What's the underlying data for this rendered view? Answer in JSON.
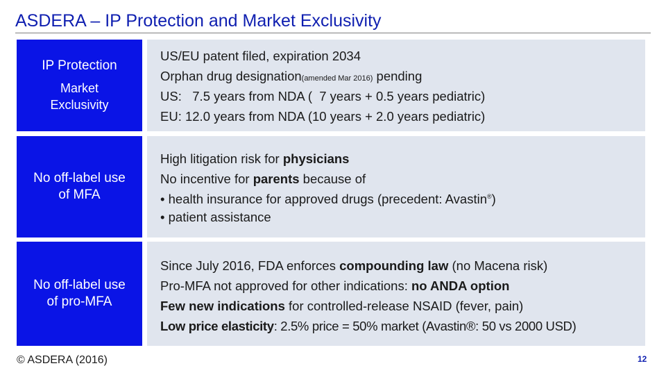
{
  "title": "ASDERA – IP Protection and Market Exclusivity",
  "rows": [
    {
      "labels": [
        "IP Protection",
        "Market Exclusivity"
      ],
      "lines": {
        "l1": "US/EU patent filed, expiration 2034",
        "l2a": "Orphan drug designation",
        "l2b": "(amended Mar 2016)",
        "l2c": " pending",
        "l3": "US:   7.5 years from NDA (  7 years + 0.5 years pediatric)",
        "l4": "EU: 12.0 years from NDA (10 years + 2.0 years pediatric)"
      }
    },
    {
      "labels": [
        "No off-label use",
        "of MFA"
      ],
      "lines": {
        "l1a": "High litigation risk for ",
        "l1b": "physicians",
        "l2a": "No incentive for ",
        "l2b": "parents",
        "l2c": " because of",
        "l3a": "• health insurance for approved drugs (precedent: Avastin",
        "l3b": "®",
        "l3c": ")",
        "l4": "• patient assistance"
      }
    },
    {
      "labels": [
        "No off-label use",
        "of pro-MFA"
      ],
      "lines": {
        "l1a": "Since July 2016, FDA enforces ",
        "l1b": "compounding law",
        "l1c": " (no Macena risk)",
        "l2a": "Pro-MFA not approved for other indications: ",
        "l2b": "no ANDA option",
        "l3a": "Few new indications",
        "l3b": " for controlled-release NSAID (fever, pain)",
        "l4a": "Low price elasticity",
        "l4b": ": 2.5% price = 50% market (Avastin®: 50 vs 2000 USD)"
      }
    }
  ],
  "footer": "© ASDERA (2016)",
  "page_number": "12",
  "colors": {
    "title": "#0f1fb0",
    "label_box": "#0a14e6",
    "content_box": "#e0e5ee"
  }
}
